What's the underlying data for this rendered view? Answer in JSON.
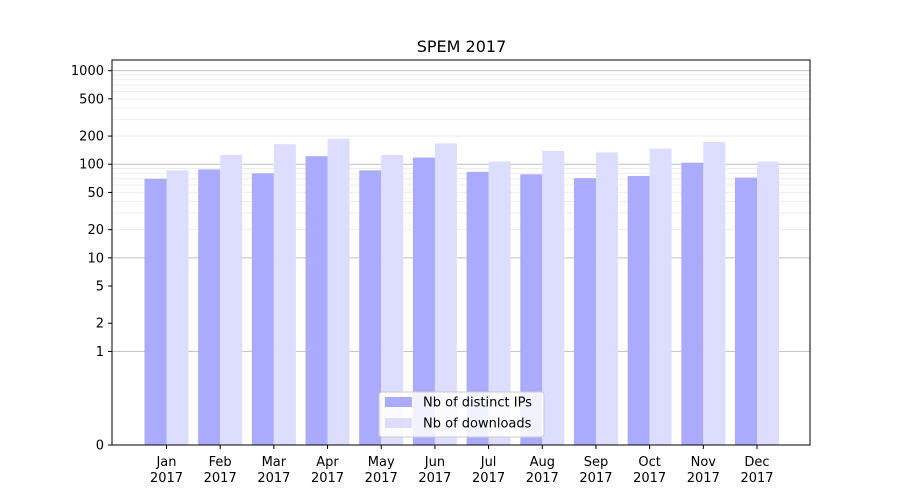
{
  "chart_data": {
    "type": "bar",
    "title": "SPEM 2017",
    "xlabel": "",
    "ylabel": "",
    "y_scale": "symlog",
    "ylim": [
      0,
      1300
    ],
    "y_ticks": [
      0,
      1,
      2,
      5,
      10,
      20,
      50,
      100,
      200,
      500,
      1000
    ],
    "grid": true,
    "legend_position": "bottom-center",
    "categories": [
      [
        "Jan",
        "2017"
      ],
      [
        "Feb",
        "2017"
      ],
      [
        "Mar",
        "2017"
      ],
      [
        "Apr",
        "2017"
      ],
      [
        "May",
        "2017"
      ],
      [
        "Jun",
        "2017"
      ],
      [
        "Jul",
        "2017"
      ],
      [
        "Aug",
        "2017"
      ],
      [
        "Sep",
        "2017"
      ],
      [
        "Oct",
        "2017"
      ],
      [
        "Nov",
        "2017"
      ],
      [
        "Dec",
        "2017"
      ]
    ],
    "series": [
      {
        "name": "Nb of distinct IPs",
        "color": "#aaaaff",
        "values": [
          70,
          88,
          80,
          122,
          86,
          118,
          83,
          78,
          71,
          75,
          104,
          72
        ]
      },
      {
        "name": "Nb of downloads",
        "color": "#ddddff",
        "values": [
          86,
          126,
          164,
          187,
          126,
          167,
          107,
          139,
          134,
          147,
          173,
          107
        ]
      }
    ]
  }
}
